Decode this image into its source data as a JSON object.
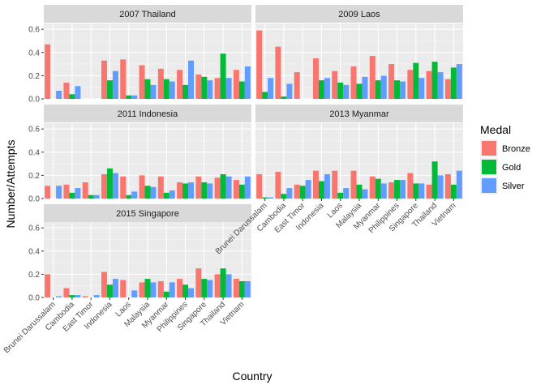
{
  "chart_data": {
    "type": "bar",
    "xlabel": "Country",
    "ylabel": "Number/Attempts",
    "ylim": [
      0,
      0.65
    ],
    "yticks": [
      "0.0",
      "0.2",
      "0.4",
      "0.6"
    ],
    "ytick_values": [
      0,
      0.2,
      0.4,
      0.6
    ],
    "grid": true,
    "legend": {
      "title": "Medal",
      "placement": "right",
      "entries": [
        {
          "name": "Bronze",
          "color": "#F8766D"
        },
        {
          "name": "Gold",
          "color": "#00BA38"
        },
        {
          "name": "Silver",
          "color": "#619CFF"
        }
      ]
    },
    "categories": [
      "Brunei Darussalam",
      "Cambodia",
      "East Timor",
      "Indonesia",
      "Laos",
      "Malaysia",
      "Myanmar",
      "Philippines",
      "Singapore",
      "Thailand",
      "Vietnam"
    ],
    "panels": [
      {
        "title": "2007 Thailand",
        "series": [
          {
            "name": "Bronze",
            "values": [
              0.47,
              0.14,
              0,
              0.33,
              0.34,
              0.29,
              0.26,
              0.25,
              0.21,
              0.18,
              0.25
            ]
          },
          {
            "name": "Gold",
            "values": [
              0,
              0.04,
              0,
              0.16,
              0.03,
              0.17,
              0.17,
              0.12,
              0.19,
              0.39,
              0.15
            ]
          },
          {
            "name": "Silver",
            "values": [
              0.07,
              0.11,
              0,
              0.24,
              0.03,
              0.12,
              0.15,
              0.33,
              0.16,
              0.18,
              0.28
            ]
          }
        ]
      },
      {
        "title": "2009 Laos",
        "series": [
          {
            "name": "Bronze",
            "values": [
              0.59,
              0.45,
              0.23,
              0.35,
              0.24,
              0.28,
              0.37,
              0.3,
              0.25,
              0.24,
              0.17
            ]
          },
          {
            "name": "Gold",
            "values": [
              0.06,
              0.02,
              0,
              0.16,
              0.14,
              0.13,
              0.16,
              0.16,
              0.31,
              0.32,
              0.27
            ]
          },
          {
            "name": "Silver",
            "values": [
              0.18,
              0.13,
              0,
              0.18,
              0.12,
              0.19,
              0.2,
              0.15,
              0.18,
              0.23,
              0.3
            ]
          }
        ]
      },
      {
        "title": "2011 Indonesia",
        "series": [
          {
            "name": "Bronze",
            "values": [
              0.11,
              0.12,
              0.14,
              0.21,
              0.19,
              0.2,
              0.19,
              0.14,
              0.19,
              0.18,
              0.16
            ]
          },
          {
            "name": "Gold",
            "values": [
              0,
              0.05,
              0.03,
              0.26,
              0.03,
              0.11,
              0.05,
              0.13,
              0.14,
              0.21,
              0.12
            ]
          },
          {
            "name": "Silver",
            "values": [
              0.11,
              0.09,
              0.03,
              0.22,
              0.06,
              0.1,
              0.07,
              0.14,
              0.13,
              0.19,
              0.19
            ]
          }
        ]
      },
      {
        "title": "2013 Myanmar",
        "series": [
          {
            "name": "Bronze",
            "values": [
              0.21,
              0.23,
              0.12,
              0.24,
              0.24,
              0.24,
              0.19,
              0.14,
              0.22,
              0.12,
              0.21
            ]
          },
          {
            "name": "Gold",
            "values": [
              0.01,
              0.04,
              0.11,
              0.15,
              0.05,
              0.12,
              0.17,
              0.16,
              0.13,
              0.32,
              0.12
            ]
          },
          {
            "name": "Silver",
            "values": [
              0.01,
              0.09,
              0.16,
              0.21,
              0.09,
              0.08,
              0.13,
              0.16,
              0.13,
              0.2,
              0.24
            ]
          }
        ]
      },
      {
        "title": "2015 Singapore",
        "series": [
          {
            "name": "Bronze",
            "values": [
              0.2,
              0.08,
              0.01,
              0.22,
              0.15,
              0.13,
              0.14,
              0.16,
              0.25,
              0.2,
              0.16
            ]
          },
          {
            "name": "Gold",
            "values": [
              0,
              0.02,
              0,
              0.11,
              0,
              0.16,
              0.05,
              0.11,
              0.16,
              0.25,
              0.14
            ]
          },
          {
            "name": "Silver",
            "values": [
              0.01,
              0.02,
              0.02,
              0.16,
              0.06,
              0.13,
              0.13,
              0.08,
              0.15,
              0.2,
              0.14
            ]
          }
        ]
      }
    ]
  }
}
